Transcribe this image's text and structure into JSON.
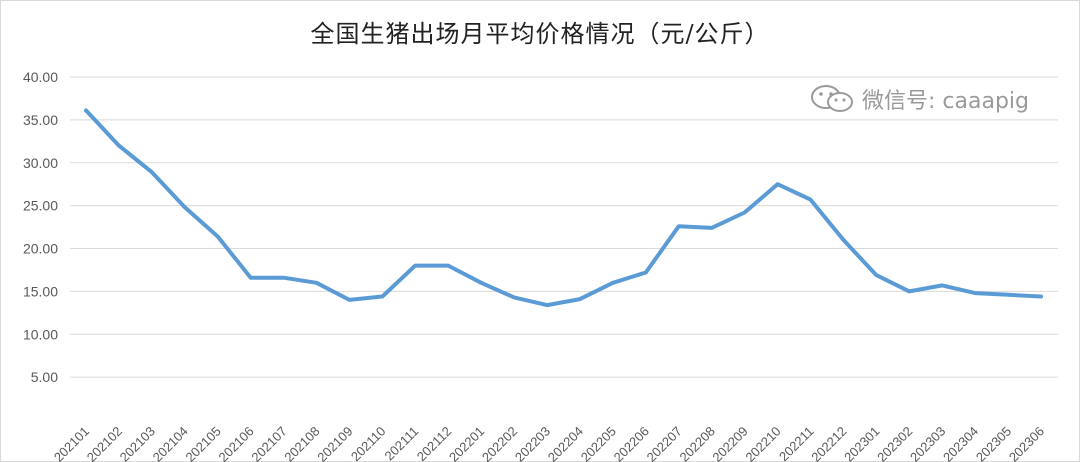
{
  "chart_data": {
    "type": "line",
    "title": "全国生猪出场月平均价格情况（元/公斤）",
    "xlabel": "",
    "ylabel": "",
    "categories": [
      "202101",
      "202102",
      "202103",
      "202104",
      "202105",
      "202106",
      "202107",
      "202108",
      "202109",
      "202110",
      "202111",
      "202112",
      "202201",
      "202202",
      "202203",
      "202204",
      "202205",
      "202206",
      "202207",
      "202208",
      "202209",
      "202210",
      "202211",
      "202212",
      "202301",
      "202302",
      "202303",
      "202304",
      "202305",
      "202306"
    ],
    "series": [
      {
        "name": "",
        "color": "#5b9bd5",
        "values": [
          36.1,
          32.0,
          28.9,
          24.8,
          21.4,
          16.6,
          16.6,
          16.0,
          14.0,
          14.4,
          18.0,
          18.0,
          16.0,
          14.3,
          13.4,
          14.1,
          16.0,
          17.2,
          22.6,
          22.4,
          24.2,
          27.5,
          25.7,
          21.0,
          16.9,
          15.0,
          15.7,
          14.8,
          14.6,
          14.4
        ]
      }
    ],
    "ylim": [
      0,
      40
    ],
    "yticks": [
      "5.00",
      "10.00",
      "15.00",
      "20.00",
      "25.00",
      "30.00",
      "35.00",
      "40.00"
    ],
    "grid": true,
    "legend": "none"
  },
  "watermark": {
    "text": "微信号: caaapig",
    "icon": "wechat-icon"
  }
}
